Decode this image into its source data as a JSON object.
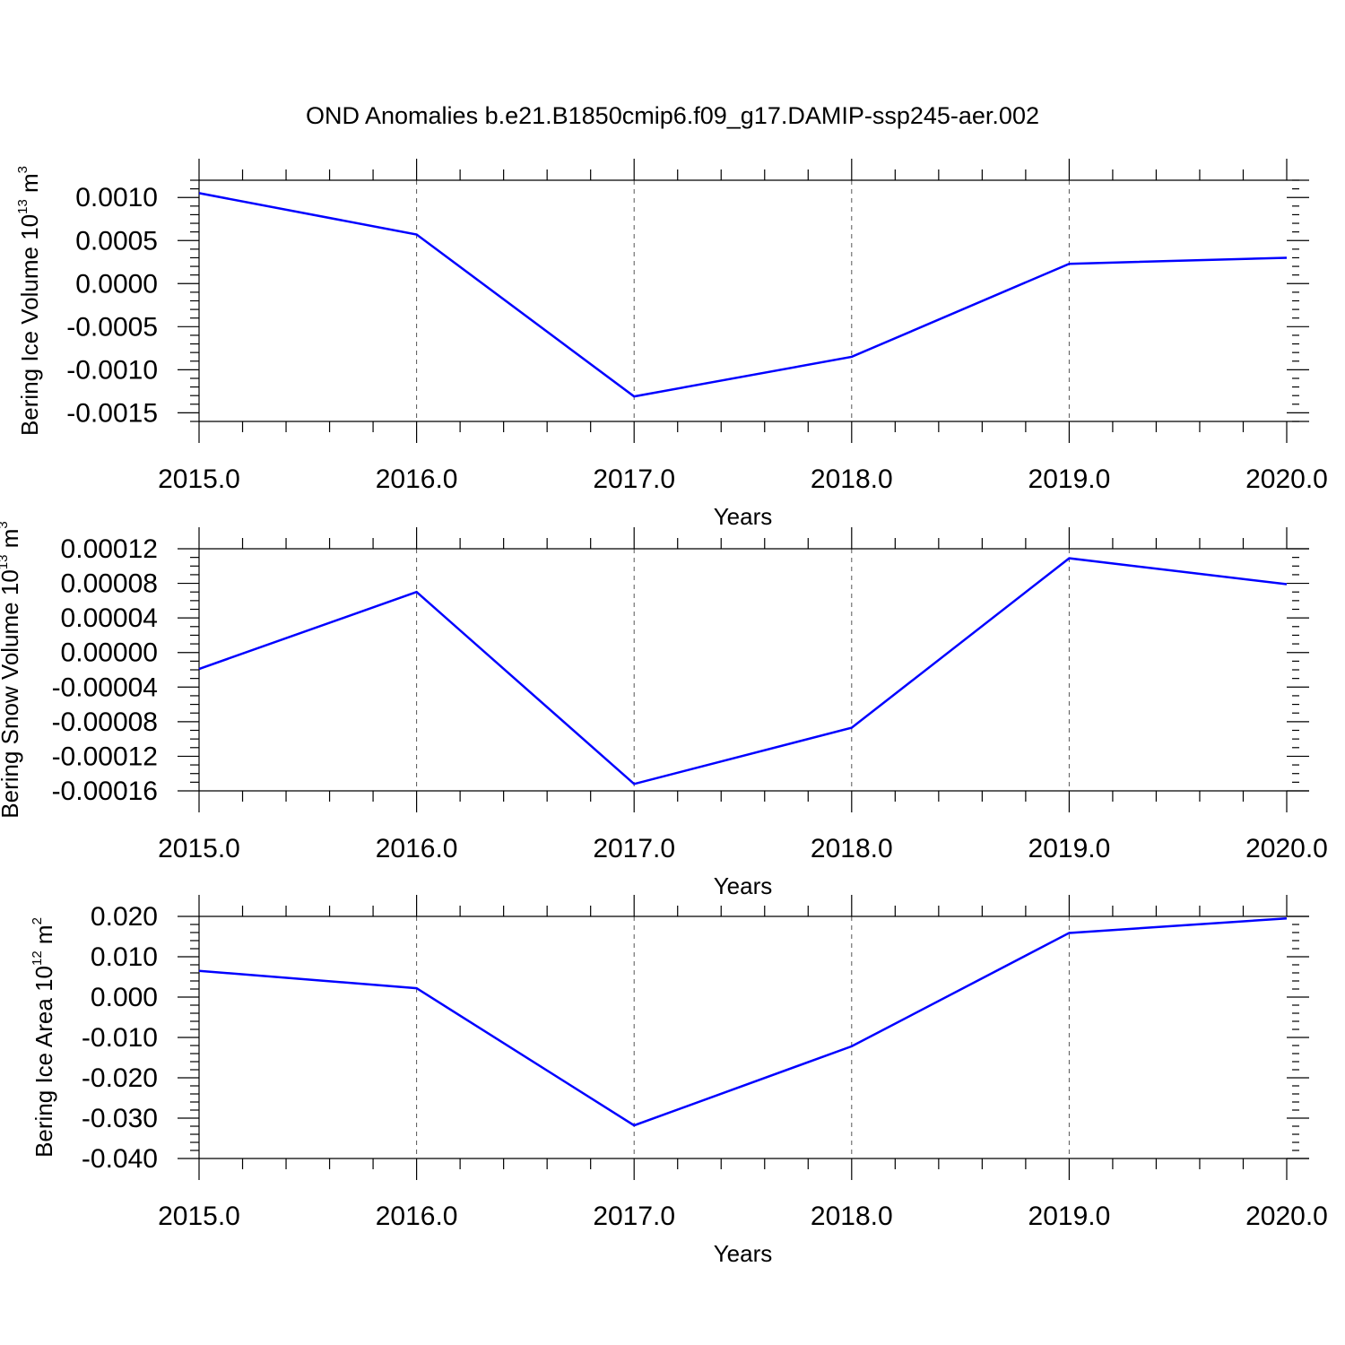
{
  "title": "OND Anomalies b.e21.B1850cmip6.f09_g17.DAMIP-ssp245-aer.002",
  "colors": {
    "series": "#0000ff",
    "axes": "#000000",
    "grid": "#555555"
  },
  "chart_data": [
    {
      "type": "line",
      "title": "",
      "xlabel": "Years",
      "ylabel": {
        "main": "Bering Ice Volume 10",
        "sup": "13",
        "unit": " m",
        "unit_sup": "3"
      },
      "x": [
        2015,
        2016,
        2017,
        2018,
        2019,
        2020
      ],
      "xlim": [
        2015,
        2020
      ],
      "xticks": [
        2015,
        2016,
        2017,
        2018,
        2019,
        2020
      ],
      "xtick_labels": [
        "2015.0",
        "2016.0",
        "2017.0",
        "2018.0",
        "2019.0",
        "2020.0"
      ],
      "ylim": [
        -0.0016,
        0.0012
      ],
      "yticks": [
        -0.0015,
        -0.001,
        -0.0005,
        0,
        0.0005,
        0.001
      ],
      "ytick_labels": [
        "-0.0015",
        "-0.0010",
        "-0.0005",
        "0.0000",
        "0.0005",
        "0.0010"
      ],
      "yminor_step": 0.0001,
      "series": [
        {
          "values": [
            0.00105,
            0.00057,
            -0.00131,
            -0.00085,
            0.00023,
            0.0003
          ]
        }
      ],
      "grid": "dashed vertical at major x ticks"
    },
    {
      "type": "line",
      "title": "",
      "xlabel": "Years",
      "ylabel": {
        "main": "Bering Snow Volume 10",
        "sup": "13",
        "unit": " m",
        "unit_sup": "3"
      },
      "x": [
        2015,
        2016,
        2017,
        2018,
        2019,
        2020
      ],
      "xlim": [
        2015,
        2020
      ],
      "xticks": [
        2015,
        2016,
        2017,
        2018,
        2019,
        2020
      ],
      "xtick_labels": [
        "2015.0",
        "2016.0",
        "2017.0",
        "2018.0",
        "2019.0",
        "2020.0"
      ],
      "ylim": [
        -0.00016,
        0.00012
      ],
      "yticks": [
        -0.00016,
        -0.00012,
        -8e-05,
        -4e-05,
        0,
        4e-05,
        8e-05,
        0.00012
      ],
      "ytick_labels": [
        "-0.00016",
        "-0.00012",
        "-0.00008",
        "-0.00004",
        "0.00000",
        "0.00004",
        "0.00008",
        "0.00012"
      ],
      "yminor_step": 1e-05,
      "series": [
        {
          "values": [
            -1.9e-05,
            7e-05,
            -0.000152,
            -8.7e-05,
            0.000109,
            7.9e-05
          ]
        }
      ],
      "grid": "dashed vertical at major x ticks"
    },
    {
      "type": "line",
      "title": "",
      "xlabel": "Years",
      "ylabel": {
        "main": "Bering Ice Area 10",
        "sup": "12",
        "unit": " m",
        "unit_sup": "2"
      },
      "x": [
        2015,
        2016,
        2017,
        2018,
        2019,
        2020
      ],
      "xlim": [
        2015,
        2020
      ],
      "xticks": [
        2015,
        2016,
        2017,
        2018,
        2019,
        2020
      ],
      "xtick_labels": [
        "2015.0",
        "2016.0",
        "2017.0",
        "2018.0",
        "2019.0",
        "2020.0"
      ],
      "ylim": [
        -0.04,
        0.02
      ],
      "yticks": [
        -0.04,
        -0.03,
        -0.02,
        -0.01,
        0,
        0.01,
        0.02
      ],
      "ytick_labels": [
        "-0.040",
        "-0.030",
        "-0.020",
        "-0.010",
        "0.000",
        "0.010",
        "0.020"
      ],
      "yminor_step": 0.002,
      "series": [
        {
          "values": [
            0.0065,
            0.0022,
            -0.0318,
            -0.0122,
            0.0159,
            0.0195
          ]
        }
      ],
      "grid": "dashed vertical at major x ticks"
    }
  ]
}
